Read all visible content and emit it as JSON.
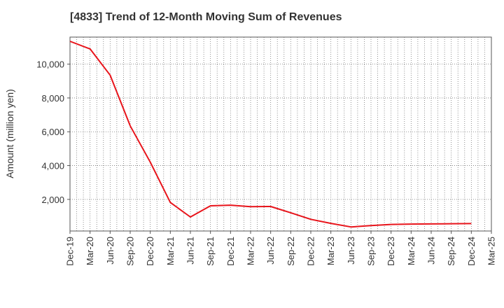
{
  "title": "[4833]  Trend of 12-Month Moving Sum of Revenues",
  "chart_data": {
    "type": "line",
    "title": "[4833]  Trend of 12-Month Moving Sum of Revenues",
    "xlabel": "",
    "ylabel": "Amount (million yen)",
    "x": [
      "Dec-19",
      "Mar-20",
      "Jun-20",
      "Sep-20",
      "Dec-20",
      "Mar-21",
      "Jun-21",
      "Sep-21",
      "Dec-21",
      "Mar-22",
      "Jun-22",
      "Sep-22",
      "Dec-22",
      "Mar-23",
      "Jun-23",
      "Sep-23",
      "Dec-23",
      "Mar-24",
      "Jun-24",
      "Sep-24",
      "Dec-24"
    ],
    "x_ticks": [
      "Dec-19",
      "Mar-20",
      "Jun-20",
      "Sep-20",
      "Dec-20",
      "Mar-21",
      "Jun-21",
      "Sep-21",
      "Dec-21",
      "Mar-22",
      "Jun-22",
      "Sep-22",
      "Dec-22",
      "Mar-23",
      "Jun-23",
      "Sep-23",
      "Dec-23",
      "Mar-24",
      "Jun-24",
      "Sep-24",
      "Dec-24",
      "Mar-25"
    ],
    "series": [
      {
        "name": "",
        "color": "#e8141b",
        "values": [
          11350,
          10900,
          9350,
          6350,
          4200,
          1820,
          960,
          1620,
          1660,
          1570,
          1580,
          1210,
          820,
          580,
          370,
          450,
          520,
          540,
          550,
          560,
          570
        ]
      }
    ],
    "yticks": [
      2000,
      4000,
      6000,
      8000,
      10000
    ],
    "ytick_labels": [
      "2,000",
      "4,000",
      "6,000",
      "8,000",
      "10,000"
    ],
    "ylim": [
      130,
      11600
    ],
    "grid": true
  }
}
